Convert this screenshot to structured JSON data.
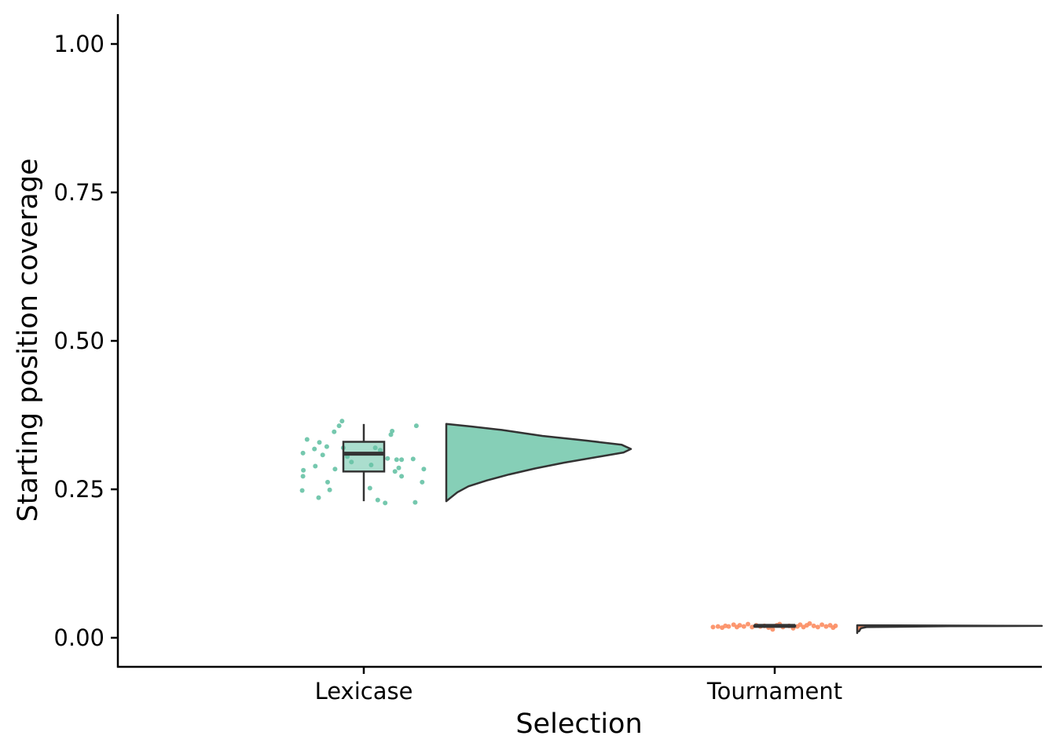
{
  "chart_data": {
    "type": "raincloud",
    "xlabel": "Selection",
    "ylabel": "Starting position coverage",
    "ylim": [
      -0.05,
      1.05
    ],
    "yticks": [
      0.0,
      0.25,
      0.5,
      0.75,
      1.0
    ],
    "ytick_labels": [
      "0.00",
      "0.25",
      "0.50",
      "0.75",
      "1.00"
    ],
    "categories": [
      "Lexicase",
      "Tournament"
    ],
    "grid": false,
    "legend": "none",
    "groups": [
      {
        "name": "Lexicase",
        "color": "#66c2a5",
        "fill": "#86cfb7",
        "box": {
          "min": 0.23,
          "q1": 0.28,
          "median": 0.31,
          "q3": 0.33,
          "max": 0.36
        },
        "points": [
          {
            "dx": -0.15,
            "y": 0.248
          },
          {
            "dx": -0.148,
            "y": 0.272
          },
          {
            "dx": -0.147,
            "y": 0.282
          },
          {
            "dx": -0.148,
            "y": 0.311
          },
          {
            "dx": -0.138,
            "y": 0.334
          },
          {
            "dx": -0.12,
            "y": 0.318
          },
          {
            "dx": -0.118,
            "y": 0.289
          },
          {
            "dx": -0.11,
            "y": 0.236
          },
          {
            "dx": -0.108,
            "y": 0.329
          },
          {
            "dx": -0.1,
            "y": 0.308
          },
          {
            "dx": -0.09,
            "y": 0.322
          },
          {
            "dx": -0.088,
            "y": 0.262
          },
          {
            "dx": -0.083,
            "y": 0.249
          },
          {
            "dx": -0.07,
            "y": 0.284
          },
          {
            "dx": -0.072,
            "y": 0.347
          },
          {
            "dx": -0.06,
            "y": 0.357
          },
          {
            "dx": -0.053,
            "y": 0.365
          },
          {
            "dx": -0.05,
            "y": 0.32
          },
          {
            "dx": -0.04,
            "y": 0.305
          },
          {
            "dx": -0.03,
            "y": 0.296
          },
          {
            "dx": 0.015,
            "y": 0.252
          },
          {
            "dx": 0.018,
            "y": 0.291
          },
          {
            "dx": 0.028,
            "y": 0.32
          },
          {
            "dx": 0.034,
            "y": 0.232
          },
          {
            "dx": 0.04,
            "y": 0.316
          },
          {
            "dx": 0.052,
            "y": 0.227
          },
          {
            "dx": 0.058,
            "y": 0.302
          },
          {
            "dx": 0.066,
            "y": 0.342
          },
          {
            "dx": 0.069,
            "y": 0.348
          },
          {
            "dx": 0.076,
            "y": 0.28
          },
          {
            "dx": 0.08,
            "y": 0.3
          },
          {
            "dx": 0.085,
            "y": 0.286
          },
          {
            "dx": 0.092,
            "y": 0.272
          },
          {
            "dx": 0.092,
            "y": 0.3
          },
          {
            "dx": 0.12,
            "y": 0.301
          },
          {
            "dx": 0.125,
            "y": 0.228
          },
          {
            "dx": 0.128,
            "y": 0.357
          },
          {
            "dx": 0.142,
            "y": 0.262
          },
          {
            "dx": 0.146,
            "y": 0.284
          }
        ],
        "density": [
          [
            0.23,
            0.0
          ],
          [
            0.235,
            0.02
          ],
          [
            0.245,
            0.06
          ],
          [
            0.255,
            0.12
          ],
          [
            0.265,
            0.22
          ],
          [
            0.275,
            0.34
          ],
          [
            0.285,
            0.48
          ],
          [
            0.295,
            0.64
          ],
          [
            0.305,
            0.83
          ],
          [
            0.312,
            0.96
          ],
          [
            0.318,
            1.0
          ],
          [
            0.325,
            0.95
          ],
          [
            0.332,
            0.76
          ],
          [
            0.34,
            0.52
          ],
          [
            0.35,
            0.3
          ],
          [
            0.356,
            0.13
          ],
          [
            0.36,
            0.0
          ]
        ]
      },
      {
        "name": "Tournament",
        "color": "#fc8d62",
        "fill": "#fc8d62",
        "box": {
          "min": 0.019,
          "q1": 0.0195,
          "median": 0.02,
          "q3": 0.0205,
          "max": 0.021
        },
        "points": [
          {
            "dx": -0.15,
            "y": 0.018
          },
          {
            "dx": -0.138,
            "y": 0.019
          },
          {
            "dx": -0.128,
            "y": 0.017
          },
          {
            "dx": -0.12,
            "y": 0.02
          },
          {
            "dx": -0.112,
            "y": 0.019
          },
          {
            "dx": -0.1,
            "y": 0.022
          },
          {
            "dx": -0.092,
            "y": 0.018
          },
          {
            "dx": -0.085,
            "y": 0.021
          },
          {
            "dx": -0.075,
            "y": 0.019
          },
          {
            "dx": -0.065,
            "y": 0.023
          },
          {
            "dx": -0.055,
            "y": 0.018
          },
          {
            "dx": -0.045,
            "y": 0.021
          },
          {
            "dx": -0.035,
            "y": 0.019
          },
          {
            "dx": -0.025,
            "y": 0.02
          },
          {
            "dx": -0.015,
            "y": 0.017
          },
          {
            "dx": -0.005,
            "y": 0.014
          },
          {
            "dx": 0.005,
            "y": 0.021
          },
          {
            "dx": 0.012,
            "y": 0.023
          },
          {
            "dx": 0.02,
            "y": 0.018
          },
          {
            "dx": 0.035,
            "y": 0.02
          },
          {
            "dx": 0.045,
            "y": 0.016
          },
          {
            "dx": 0.055,
            "y": 0.019
          },
          {
            "dx": 0.062,
            "y": 0.022
          },
          {
            "dx": 0.07,
            "y": 0.018
          },
          {
            "dx": 0.078,
            "y": 0.021
          },
          {
            "dx": 0.085,
            "y": 0.024
          },
          {
            "dx": 0.095,
            "y": 0.02
          },
          {
            "dx": 0.105,
            "y": 0.018
          },
          {
            "dx": 0.115,
            "y": 0.022
          },
          {
            "dx": 0.125,
            "y": 0.019
          },
          {
            "dx": 0.135,
            "y": 0.021
          },
          {
            "dx": 0.142,
            "y": 0.017
          },
          {
            "dx": 0.148,
            "y": 0.02
          }
        ],
        "density": [
          [
            0.008,
            0.0
          ],
          [
            0.01,
            0.0
          ],
          [
            0.011,
            0.01
          ],
          [
            0.016,
            0.02
          ],
          [
            0.018,
            0.05
          ],
          [
            0.0195,
            0.5
          ],
          [
            0.02,
            1.0
          ],
          [
            0.0205,
            0.5
          ],
          [
            0.021,
            0.0
          ]
        ]
      }
    ]
  }
}
